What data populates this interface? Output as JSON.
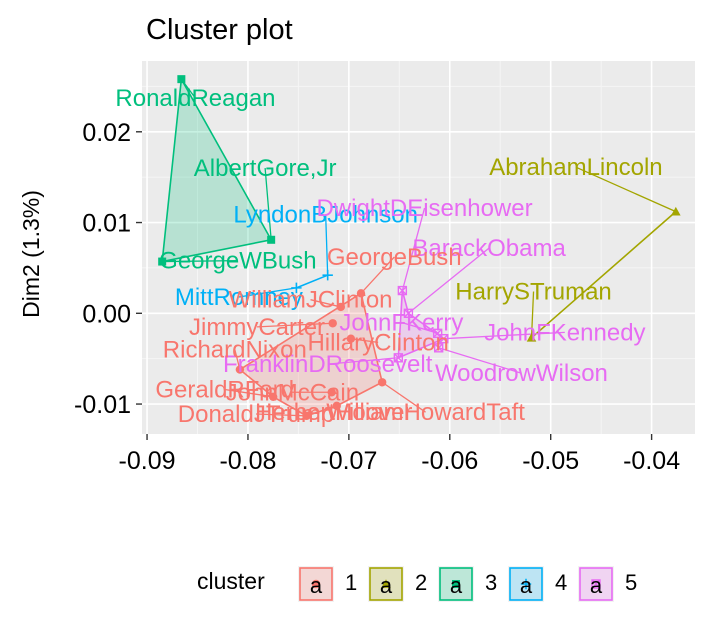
{
  "chart_data": {
    "type": "scatter",
    "title": "Cluster plot",
    "xlabel": "",
    "ylabel": "Dim2 (1.3%)",
    "xlim": [
      -0.0905,
      -0.0357
    ],
    "ylim": [
      -0.0133,
      0.0278
    ],
    "x_ticks": [
      -0.09,
      -0.08,
      -0.07,
      -0.06,
      -0.05,
      -0.04
    ],
    "x_tick_labels": [
      "-0.09",
      "-0.08",
      "-0.07",
      "-0.06",
      "-0.05",
      "-0.04"
    ],
    "y_ticks": [
      -0.01,
      0.0,
      0.01,
      0.02
    ],
    "y_tick_labels": [
      "-0.01",
      "0.00",
      "0.01",
      "0.02"
    ],
    "grid": true,
    "legend": {
      "title": "cluster",
      "position": "bottom"
    },
    "clusters": [
      {
        "name": "1",
        "color": "#F8766D",
        "shape": "circle",
        "hull": true
      },
      {
        "name": "2",
        "color": "#A3A500",
        "shape": "triangle",
        "hull": true
      },
      {
        "name": "3",
        "color": "#00BF7D",
        "shape": "square",
        "hull": true
      },
      {
        "name": "4",
        "color": "#00B0F6",
        "shape": "plus",
        "hull": true
      },
      {
        "name": "5",
        "color": "#E76BF3",
        "shape": "boxcross",
        "hull": true
      }
    ],
    "points": [
      {
        "label": "RonaldReagan",
        "cluster": "3",
        "x": -0.0866,
        "y": 0.0258,
        "lx": -0.0852,
        "ly": 0.0237
      },
      {
        "label": "AlbertGore,Jr",
        "cluster": "3",
        "x": -0.0777,
        "y": 0.0081,
        "lx": -0.0783,
        "ly": 0.016
      },
      {
        "label": "GeorgeWBush",
        "cluster": "3",
        "x": -0.0885,
        "y": 0.0057,
        "lx": -0.081,
        "ly": 0.0058
      },
      {
        "label": "LyndonBJohnson",
        "cluster": "4",
        "x": -0.0721,
        "y": 0.0042,
        "lx": -0.0723,
        "ly": 0.0109
      },
      {
        "label": "MittRomney",
        "cluster": "4",
        "x": -0.0752,
        "y": 0.0028,
        "lx": -0.0809,
        "ly": 0.0018
      },
      {
        "label": "DwightDEisenhower",
        "cluster": "5",
        "x": -0.0647,
        "y": 0.0025,
        "lx": -0.0625,
        "ly": 0.0116
      },
      {
        "label": "BarackObama",
        "cluster": "5",
        "x": -0.0641,
        "y": 0.0,
        "lx": -0.0561,
        "ly": 0.0072
      },
      {
        "label": "JohnFKerry",
        "cluster": "5",
        "x": -0.0612,
        "y": -0.0022,
        "lx": -0.0648,
        "ly": -0.001
      },
      {
        "label": "JohnFKennedy",
        "cluster": "5",
        "x": -0.0606,
        "y": -0.0028,
        "lx": -0.0486,
        "ly": -0.0021
      },
      {
        "label": "FranklinDRoosevelt",
        "cluster": "5",
        "x": -0.0651,
        "y": -0.0049,
        "lx": -0.0721,
        "ly": -0.0056
      },
      {
        "label": "WoodrowWilson",
        "cluster": "5",
        "x": -0.0611,
        "y": -0.0038,
        "lx": -0.0529,
        "ly": -0.0066
      },
      {
        "label": "AbrahamLincoln",
        "cluster": "2",
        "x": -0.0376,
        "y": 0.0112,
        "lx": -0.0475,
        "ly": 0.0161
      },
      {
        "label": "HarrySTruman",
        "cluster": "2",
        "x": -0.0519,
        "y": -0.0027,
        "lx": -0.0517,
        "ly": 0.0024
      },
      {
        "label": "GeorgeBush",
        "cluster": "1",
        "x": -0.0688,
        "y": 0.0022,
        "lx": -0.0655,
        "ly": 0.0062
      },
      {
        "label": "WilliamJClinton",
        "cluster": "1",
        "x": -0.0708,
        "y": 0.0007,
        "lx": -0.0738,
        "ly": 0.0015
      },
      {
        "label": "JimmyCarter",
        "cluster": "1",
        "x": -0.0716,
        "y": -0.0011,
        "lx": -0.0791,
        "ly": -0.0015
      },
      {
        "label": "HillaryClinton",
        "cluster": "1",
        "x": -0.0698,
        "y": -0.0028,
        "lx": -0.0671,
        "ly": -0.0032
      },
      {
        "label": "RichardNixon",
        "cluster": "1",
        "x": -0.0808,
        "y": -0.0062,
        "lx": -0.0813,
        "ly": -0.004
      },
      {
        "label": "GeraldRFord",
        "cluster": "1",
        "x": -0.0775,
        "y": -0.0092,
        "lx": -0.0823,
        "ly": -0.0084
      },
      {
        "label": "JohnMcCain",
        "cluster": "1",
        "x": -0.0717,
        "y": -0.0087,
        "lx": -0.0756,
        "ly": -0.0087
      },
      {
        "label": "DonaldJTrump",
        "cluster": "1",
        "x": -0.0742,
        "y": -0.0113,
        "lx": -0.0792,
        "ly": -0.0111
      },
      {
        "label": "HerbertHoover",
        "cluster": "1",
        "x": -0.0712,
        "y": -0.0102,
        "lx": -0.0715,
        "ly": -0.0109
      },
      {
        "label": "WilliamHowardTaft",
        "cluster": "1",
        "x": -0.0667,
        "y": -0.0076,
        "lx": -0.0624,
        "ly": -0.0109
      }
    ],
    "hulls": {
      "1": [
        "RichardNixon",
        "GeorgeBush",
        "WilliamHowardTaft",
        "HerbertHoover",
        "DonaldJTrump",
        "GeraldRFord"
      ],
      "2": [
        "AbrahamLincoln",
        "HarrySTruman"
      ],
      "3": [
        "RonaldReagan",
        "AlbertGore,Jr",
        "GeorgeWBush"
      ],
      "4": [
        "LyndonBJohnson",
        "MittRomney"
      ],
      "5": [
        "DwightDEisenhower",
        "FranklinDRoosevelt",
        "JohnFKennedy",
        "BarackObama"
      ]
    }
  }
}
